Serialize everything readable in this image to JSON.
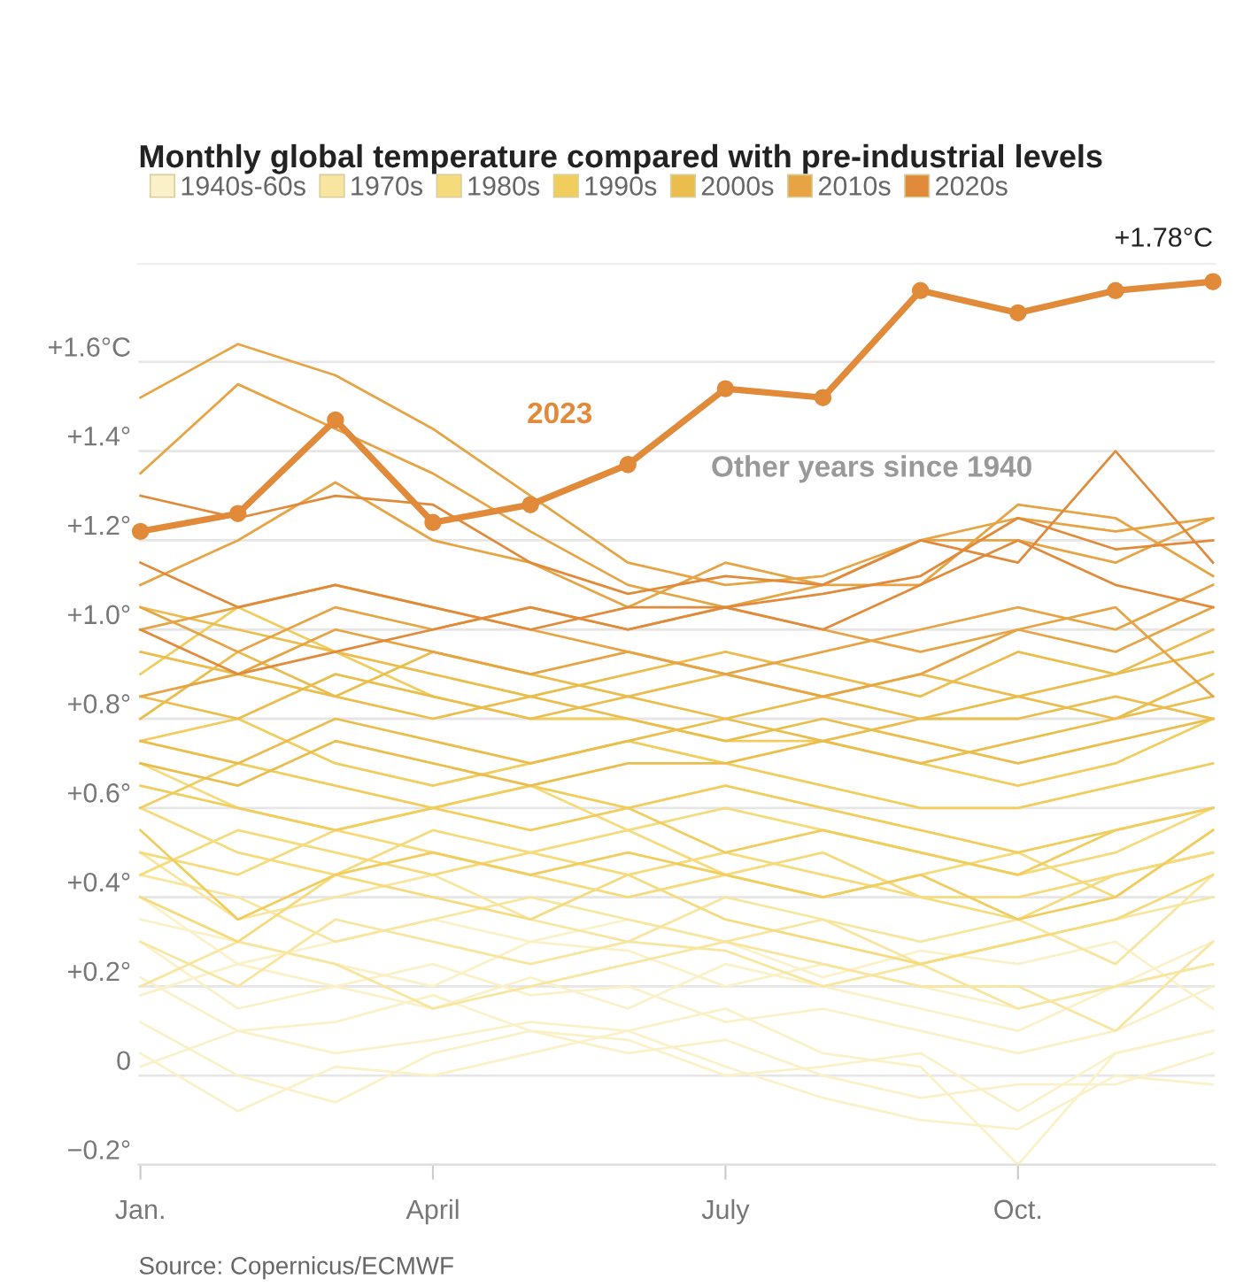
{
  "chart_data": {
    "type": "line",
    "title": "Monthly global temperature compared with pre-industrial levels",
    "categories": [
      "Jan.",
      null,
      null,
      "April",
      null,
      null,
      "July",
      null,
      null,
      "Oct.",
      null,
      null
    ],
    "ylim": [
      -0.2,
      1.82
    ],
    "yticks": [
      {
        "value": -0.2,
        "label": "−0.2°"
      },
      {
        "value": 0,
        "label": "0"
      },
      {
        "value": 0.2,
        "label": "+0.2°"
      },
      {
        "value": 0.4,
        "label": "+0.4°"
      },
      {
        "value": 0.6,
        "label": "+0.6°"
      },
      {
        "value": 0.8,
        "label": "+0.8°"
      },
      {
        "value": 1.0,
        "label": "+1.0°"
      },
      {
        "value": 1.2,
        "label": "+1.2°"
      },
      {
        "value": 1.4,
        "label": "+1.4°"
      },
      {
        "value": 1.6,
        "label": "+1.6°C"
      }
    ],
    "grid": "y",
    "legend": "top left",
    "marker": "none",
    "line_style": "solid",
    "series": [
      {
        "name": "1940s-60s",
        "color": "#fbf1c8",
        "values": [
          0.22,
          0.1,
          0.05,
          0.08,
          0.12,
          0.1,
          0.15,
          0.05,
          0.02,
          -0.2,
          0.05,
          0.1
        ]
      },
      {
        "color": "#fbf1c8",
        "values": [
          0.05,
          -0.08,
          0.02,
          0.0,
          0.05,
          0.1,
          0.02,
          -0.05,
          -0.1,
          -0.12,
          0.0,
          -0.02
        ]
      },
      {
        "color": "#fbf1c8",
        "values": [
          0.3,
          0.15,
          0.2,
          0.25,
          0.18,
          0.2,
          0.12,
          0.15,
          0.1,
          0.05,
          0.1,
          0.2
        ]
      },
      {
        "color": "#fbf1c8",
        "values": [
          0.12,
          0.0,
          -0.06,
          0.05,
          0.1,
          0.08,
          0.0,
          0.02,
          0.05,
          -0.08,
          0.05,
          0.1
        ]
      },
      {
        "color": "#fbf1c8",
        "values": [
          0.4,
          0.25,
          0.3,
          0.35,
          0.3,
          0.28,
          0.2,
          0.25,
          0.2,
          0.15,
          0.2,
          0.25
        ]
      },
      {
        "color": "#fbf1c8",
        "values": [
          0.18,
          0.25,
          0.2,
          0.15,
          0.22,
          0.15,
          0.25,
          0.2,
          0.15,
          0.1,
          0.2,
          0.3
        ]
      },
      {
        "color": "#fbf1c8",
        "values": [
          0.02,
          0.1,
          0.12,
          0.18,
          0.1,
          0.05,
          0.08,
          0.0,
          -0.05,
          -0.02,
          -0.02,
          0.05
        ]
      },
      {
        "color": "#fbf1c8",
        "values": [
          0.35,
          0.3,
          0.25,
          0.2,
          0.3,
          0.35,
          0.3,
          0.22,
          0.28,
          0.25,
          0.3,
          0.15
        ]
      },
      {
        "name": "1970s",
        "color": "#f8e6a0",
        "values": [
          0.3,
          0.2,
          0.35,
          0.3,
          0.25,
          0.3,
          0.28,
          0.2,
          0.25,
          0.15,
          0.2,
          0.25
        ]
      },
      {
        "color": "#f8e6a0",
        "values": [
          0.45,
          0.4,
          0.3,
          0.35,
          0.4,
          0.35,
          0.3,
          0.35,
          0.25,
          0.3,
          0.35,
          0.4
        ]
      },
      {
        "color": "#f8e6a0",
        "values": [
          0.2,
          0.3,
          0.25,
          0.15,
          0.2,
          0.25,
          0.3,
          0.25,
          0.2,
          0.2,
          0.1,
          0.3
        ]
      },
      {
        "color": "#f8e6a0",
        "values": [
          0.5,
          0.35,
          0.4,
          0.45,
          0.35,
          0.3,
          0.4,
          0.35,
          0.3,
          0.35,
          0.25,
          0.45
        ]
      },
      {
        "name": "1980s",
        "color": "#f5db7c",
        "values": [
          0.5,
          0.45,
          0.55,
          0.5,
          0.45,
          0.4,
          0.45,
          0.5,
          0.4,
          0.35,
          0.45,
          0.5
        ]
      },
      {
        "color": "#f5db7c",
        "values": [
          0.6,
          0.5,
          0.45,
          0.55,
          0.5,
          0.55,
          0.45,
          0.4,
          0.45,
          0.5,
          0.4,
          0.55
        ]
      },
      {
        "color": "#f5db7c",
        "values": [
          0.4,
          0.3,
          0.45,
          0.4,
          0.35,
          0.45,
          0.35,
          0.3,
          0.25,
          0.3,
          0.35,
          0.45
        ]
      },
      {
        "color": "#f5db7c",
        "values": [
          0.7,
          0.6,
          0.55,
          0.6,
          0.65,
          0.55,
          0.6,
          0.55,
          0.5,
          0.45,
          0.5,
          0.6
        ]
      },
      {
        "color": "#f5db7c",
        "values": [
          0.45,
          0.55,
          0.5,
          0.45,
          0.5,
          0.45,
          0.5,
          0.45,
          0.4,
          0.4,
          0.45,
          0.5
        ]
      },
      {
        "name": "1990s",
        "color": "#f1cd5e",
        "values": [
          0.6,
          0.7,
          0.65,
          0.6,
          0.55,
          0.6,
          0.5,
          0.55,
          0.5,
          0.45,
          0.55,
          0.6
        ]
      },
      {
        "color": "#f1cd5e",
        "values": [
          0.75,
          0.8,
          0.7,
          0.65,
          0.7,
          0.75,
          0.7,
          0.65,
          0.6,
          0.6,
          0.65,
          0.7
        ]
      },
      {
        "color": "#f1cd5e",
        "values": [
          0.55,
          0.35,
          0.45,
          0.5,
          0.45,
          0.5,
          0.45,
          0.4,
          0.45,
          0.35,
          0.4,
          0.55
        ]
      },
      {
        "color": "#f1cd5e",
        "values": [
          0.9,
          1.05,
          0.95,
          0.85,
          0.8,
          0.8,
          0.75,
          0.75,
          0.7,
          0.65,
          0.7,
          0.8
        ]
      },
      {
        "color": "#f1cd5e",
        "values": [
          0.65,
          0.6,
          0.55,
          0.6,
          0.65,
          0.6,
          0.65,
          0.6,
          0.55,
          0.5,
          0.55,
          0.6
        ]
      },
      {
        "name": "2000s",
        "color": "#ebbd4c",
        "values": [
          0.75,
          0.7,
          0.8,
          0.75,
          0.7,
          0.75,
          0.8,
          0.75,
          0.7,
          0.75,
          0.8,
          0.85
        ]
      },
      {
        "color": "#ebbd4c",
        "values": [
          0.85,
          0.8,
          0.9,
          0.85,
          0.8,
          0.85,
          0.8,
          0.85,
          0.8,
          0.8,
          0.85,
          0.8
        ]
      },
      {
        "color": "#ebbd4c",
        "values": [
          0.95,
          0.9,
          0.85,
          0.95,
          0.9,
          0.85,
          0.9,
          0.85,
          0.9,
          0.85,
          0.9,
          0.95
        ]
      },
      {
        "color": "#ebbd4c",
        "values": [
          0.8,
          0.95,
          0.85,
          0.8,
          0.85,
          0.8,
          0.75,
          0.8,
          0.75,
          0.7,
          0.75,
          0.8
        ]
      },
      {
        "color": "#ebbd4c",
        "values": [
          0.7,
          0.65,
          0.75,
          0.7,
          0.65,
          0.7,
          0.7,
          0.75,
          0.8,
          0.85,
          0.8,
          0.9
        ]
      },
      {
        "color": "#ebbd4c",
        "values": [
          1.05,
          1.0,
          0.95,
          0.9,
          0.85,
          0.9,
          0.95,
          0.9,
          0.85,
          0.95,
          0.9,
          1.0
        ]
      },
      {
        "name": "2010s",
        "color": "#e6a445",
        "values": [
          1.0,
          1.05,
          1.1,
          1.05,
          1.0,
          0.95,
          0.9,
          0.95,
          1.0,
          1.05,
          1.0,
          1.1
        ]
      },
      {
        "color": "#e6a445",
        "values": [
          1.52,
          1.64,
          1.57,
          1.45,
          1.3,
          1.15,
          1.1,
          1.12,
          1.2,
          1.2,
          1.15,
          1.25
        ]
      },
      {
        "color": "#e6a445",
        "values": [
          1.35,
          1.55,
          1.45,
          1.35,
          1.22,
          1.1,
          1.05,
          1.1,
          1.1,
          1.28,
          1.25,
          1.12
        ]
      },
      {
        "color": "#e6a445",
        "values": [
          1.1,
          1.2,
          1.33,
          1.2,
          1.15,
          1.05,
          1.15,
          1.1,
          1.2,
          1.25,
          1.22,
          1.25
        ]
      },
      {
        "color": "#e6a445",
        "values": [
          0.85,
          0.9,
          1.0,
          0.95,
          0.9,
          0.95,
          0.9,
          0.85,
          0.9,
          1.0,
          0.95,
          1.05
        ]
      },
      {
        "color": "#e6a445",
        "values": [
          1.05,
          0.95,
          1.05,
          1.0,
          1.05,
          1.0,
          1.05,
          1.0,
          0.95,
          1.0,
          1.05,
          0.85
        ]
      },
      {
        "name": "2020s",
        "color": "#e08a3a",
        "values": [
          1.3,
          1.25,
          1.3,
          1.28,
          1.15,
          1.08,
          1.12,
          1.1,
          1.2,
          1.15,
          1.4,
          1.15
        ]
      },
      {
        "color": "#e08a3a",
        "values": [
          1.0,
          0.9,
          0.95,
          1.0,
          1.05,
          1.0,
          1.05,
          1.0,
          1.1,
          1.2,
          1.1,
          1.05
        ]
      },
      {
        "color": "#e08a3a",
        "values": [
          1.15,
          1.05,
          1.1,
          1.05,
          1.0,
          1.05,
          1.05,
          1.08,
          1.12,
          1.25,
          1.18,
          1.2
        ]
      },
      {
        "name": "2023",
        "color": "#e08a3a",
        "values": [
          1.22,
          1.26,
          1.47,
          1.24,
          1.28,
          1.37,
          1.54,
          1.52,
          1.76,
          1.71,
          1.76,
          1.78
        ],
        "marker": "circle",
        "line_style": "solid"
      }
    ],
    "annotations": [
      {
        "text": "+1.78°C",
        "y": 1.78
      },
      "Other years since 1940",
      "Source: Copernicus/ECMWF"
    ]
  }
}
